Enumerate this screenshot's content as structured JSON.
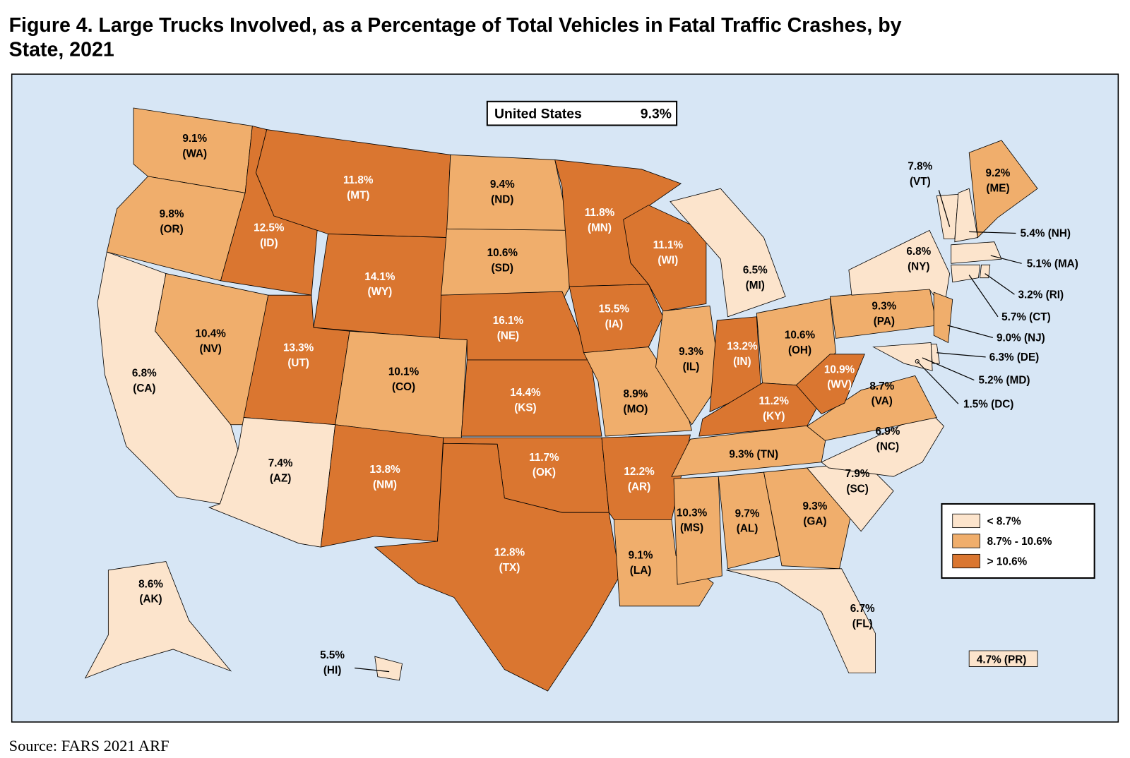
{
  "title": "Figure 4. Large Trucks Involved, as a Percentage of Total Vehicles in Fatal Traffic Crashes, by State, 2021",
  "us_total": {
    "label": "United States",
    "value": 9.3,
    "value_label": "9.3%"
  },
  "breaks": [
    8.7,
    10.6
  ],
  "legend": [
    {
      "label": "< 8.7%",
      "color": "#fce4cc"
    },
    {
      "label": "8.7% - 10.6%",
      "color": "#f0ae6c"
    },
    {
      "label": "> 10.6%",
      "color": "#da7630"
    }
  ],
  "states": [
    {
      "name": "(WA)",
      "value": 9.1,
      "value_label": "9.1%"
    },
    {
      "name": "(OR)",
      "value": 9.8,
      "value_label": "9.8%"
    },
    {
      "name": "(CA)",
      "value": 6.8,
      "value_label": "6.8%"
    },
    {
      "name": "(NV)",
      "value": 10.4,
      "value_label": "10.4%"
    },
    {
      "name": "(ID)",
      "value": 12.5,
      "value_label": "12.5%"
    },
    {
      "name": "(MT)",
      "value": 11.8,
      "value_label": "11.8%"
    },
    {
      "name": "(WY)",
      "value": 14.1,
      "value_label": "14.1%"
    },
    {
      "name": "(UT)",
      "value": 13.3,
      "value_label": "13.3%"
    },
    {
      "name": "(CO)",
      "value": 10.1,
      "value_label": "10.1%"
    },
    {
      "name": "(AZ)",
      "value": 7.4,
      "value_label": "7.4%"
    },
    {
      "name": "(NM)",
      "value": 13.8,
      "value_label": "13.8%"
    },
    {
      "name": "(ND)",
      "value": 9.4,
      "value_label": "9.4%"
    },
    {
      "name": "(SD)",
      "value": 10.6,
      "value_label": "10.6%"
    },
    {
      "name": "(NE)",
      "value": 16.1,
      "value_label": "16.1%"
    },
    {
      "name": "(KS)",
      "value": 14.4,
      "value_label": "14.4%"
    },
    {
      "name": "(OK)",
      "value": 11.7,
      "value_label": "11.7%"
    },
    {
      "name": "(TX)",
      "value": 12.8,
      "value_label": "12.8%"
    },
    {
      "name": "(MN)",
      "value": 11.8,
      "value_label": "11.8%"
    },
    {
      "name": "(IA)",
      "value": 15.5,
      "value_label": "15.5%"
    },
    {
      "name": "(MO)",
      "value": 8.9,
      "value_label": "8.9%"
    },
    {
      "name": "(AR)",
      "value": 12.2,
      "value_label": "12.2%"
    },
    {
      "name": "(LA)",
      "value": 9.1,
      "value_label": "9.1%"
    },
    {
      "name": "(WI)",
      "value": 11.1,
      "value_label": "11.1%"
    },
    {
      "name": "(IL)",
      "value": 9.3,
      "value_label": "9.3%"
    },
    {
      "name": "(MI)",
      "value": 6.5,
      "value_label": "6.5%"
    },
    {
      "name": "(IN)",
      "value": 13.2,
      "value_label": "13.2%"
    },
    {
      "name": "(OH)",
      "value": 10.6,
      "value_label": "10.6%"
    },
    {
      "name": "(KY)",
      "value": 11.2,
      "value_label": "11.2%"
    },
    {
      "name": "(TN)",
      "value": 9.3,
      "value_label": "9.3%"
    },
    {
      "name": "(MS)",
      "value": 10.3,
      "value_label": "10.3%"
    },
    {
      "name": "(AL)",
      "value": 9.7,
      "value_label": "9.7%"
    },
    {
      "name": "(GA)",
      "value": 9.3,
      "value_label": "9.3%"
    },
    {
      "name": "(FL)",
      "value": 6.7,
      "value_label": "6.7%"
    },
    {
      "name": "(SC)",
      "value": 7.9,
      "value_label": "7.9%"
    },
    {
      "name": "(NC)",
      "value": 6.9,
      "value_label": "6.9%"
    },
    {
      "name": "(VA)",
      "value": 8.7,
      "value_label": "8.7%"
    },
    {
      "name": "(WV)",
      "value": 10.9,
      "value_label": "10.9%"
    },
    {
      "name": "(PA)",
      "value": 9.3,
      "value_label": "9.3%"
    },
    {
      "name": "(NY)",
      "value": 6.8,
      "value_label": "6.8%"
    },
    {
      "name": "(VT)",
      "value": 7.8,
      "value_label": "7.8%"
    },
    {
      "name": "(ME)",
      "value": 9.2,
      "value_label": "9.2%"
    },
    {
      "name": "(NH)",
      "value": 5.4,
      "value_label": "5.4%"
    },
    {
      "name": "(MA)",
      "value": 5.1,
      "value_label": "5.1%"
    },
    {
      "name": "(RI)",
      "value": 3.2,
      "value_label": "3.2%"
    },
    {
      "name": "(CT)",
      "value": 5.7,
      "value_label": "5.7%"
    },
    {
      "name": "(NJ)",
      "value": 9.0,
      "value_label": "9.0%"
    },
    {
      "name": "(DE)",
      "value": 6.3,
      "value_label": "6.3%"
    },
    {
      "name": "(MD)",
      "value": 5.2,
      "value_label": "5.2%"
    },
    {
      "name": "(DC)",
      "value": 1.5,
      "value_label": "1.5%"
    },
    {
      "name": "(AK)",
      "value": 8.6,
      "value_label": "8.6%"
    },
    {
      "name": "(HI)",
      "value": 5.5,
      "value_label": "5.5%"
    },
    {
      "name": "(PR)",
      "value": 4.7,
      "value_label": "4.7%"
    }
  ],
  "source": "Source: FARS 2021 ARF"
}
